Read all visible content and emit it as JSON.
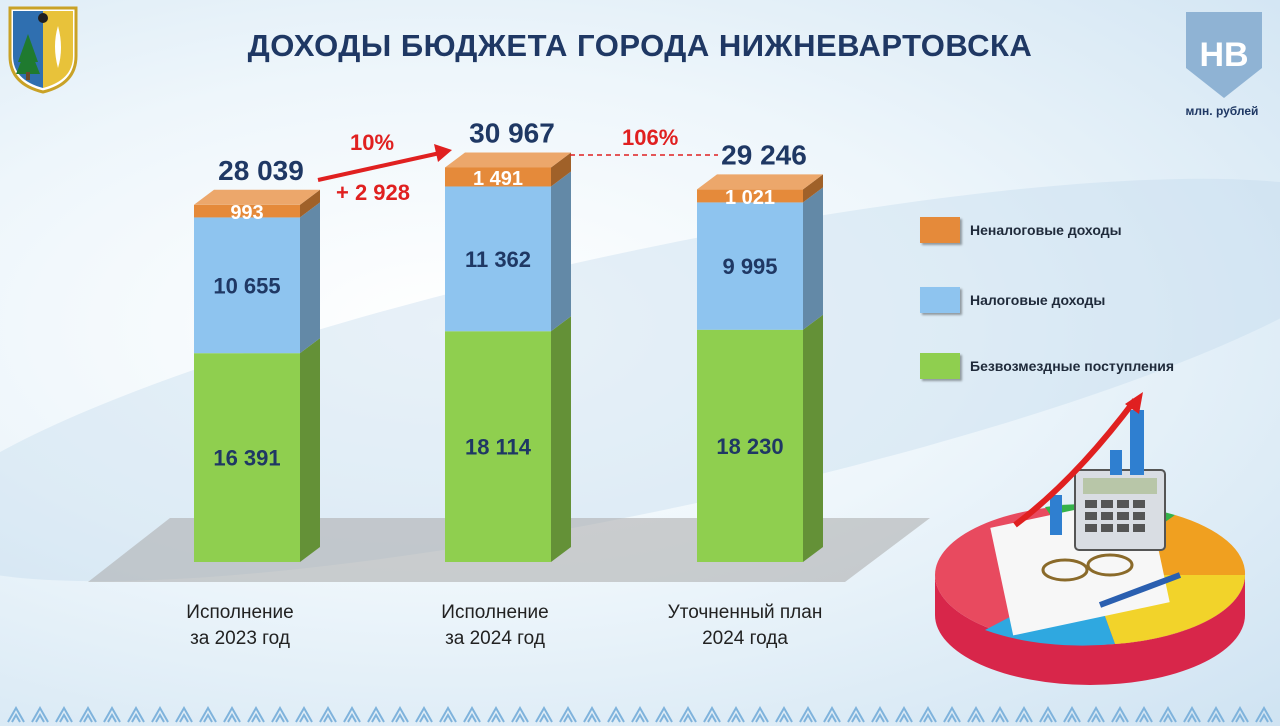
{
  "title": "ДОХОДЫ БЮДЖЕТА ГОРОДА НИЖНЕВАРТОВСКА",
  "unit": "млн. рублей",
  "logo_text": "НВ",
  "colors": {
    "title": "#1f3864",
    "nontax": "#e58a3a",
    "tax": "#8ec4ef",
    "gratuitous": "#8fcf4f",
    "annotation": "#e02020"
  },
  "chart_data": {
    "type": "bar",
    "stacked": true,
    "categories": [
      [
        "Исполнение",
        "за 2023 год"
      ],
      [
        "Исполнение",
        "за 2024 год"
      ],
      [
        "Уточненный план",
        "2024 года"
      ]
    ],
    "series": [
      {
        "name": "Безвозмездные поступления",
        "values": [
          16391,
          18114,
          18230
        ],
        "labels": [
          "16 391",
          "18 114",
          "18 230"
        ],
        "color": "#8fcf4f"
      },
      {
        "name": "Налоговые доходы",
        "values": [
          10655,
          11362,
          9995
        ],
        "labels": [
          "10 655",
          "11 362",
          "9 995"
        ],
        "color": "#8ec4ef"
      },
      {
        "name": "Неналоговые доходы",
        "values": [
          993,
          1491,
          1021
        ],
        "labels": [
          "993",
          "1 491",
          "1 021"
        ],
        "color": "#e58a3a"
      }
    ],
    "totals": [
      28039,
      30967,
      29246
    ],
    "total_labels": [
      "28 039",
      "30 967",
      "29 246"
    ],
    "annotations": [
      {
        "text": "10%",
        "between": [
          0,
          1
        ]
      },
      {
        "text": "+ 2 928",
        "between": [
          0,
          1
        ]
      },
      {
        "text": "106%",
        "between": [
          1,
          2
        ]
      }
    ],
    "legend_position": "right"
  }
}
